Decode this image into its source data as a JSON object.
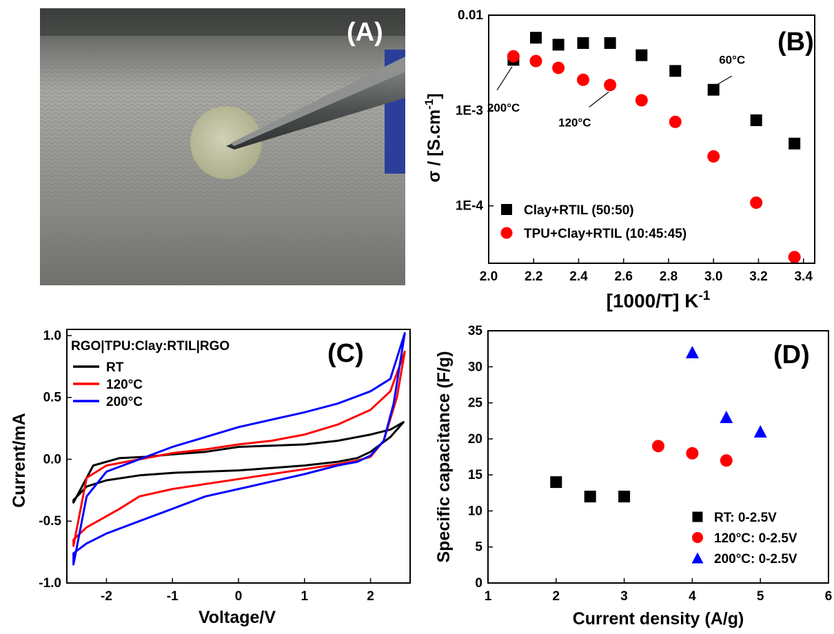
{
  "photo": {
    "label": "(A)",
    "colors": {
      "background": "#8e8e8c",
      "sample": "#c3c4a5",
      "tweezers": "#5a5c5c"
    }
  },
  "chart_data": [
    {
      "panel": "(B)",
      "type": "scatter",
      "xlabel": "[1000/T] K",
      "xlabel_sup": "-1",
      "ylabel": "σ / [S.cm",
      "ylabel_sup": "-1",
      "ylabel_end": "]",
      "xlim": [
        2.0,
        3.45
      ],
      "ylim": [
        2.5e-05,
        0.01
      ],
      "yscale": "log",
      "xticks": [
        2.0,
        2.2,
        2.4,
        2.6,
        2.8,
        3.0,
        3.2,
        3.4
      ],
      "xtick_labels": [
        "2.0",
        "2.2",
        "2.4",
        "2.6",
        "2.8",
        "3.0",
        "3.2",
        "3.4"
      ],
      "yticks": [
        0.0001,
        0.001,
        0.01
      ],
      "ytick_labels": [
        "1E-4",
        "1E-3",
        "0.01"
      ],
      "legend_position": "bottom-left",
      "series": [
        {
          "name": "Clay+RTIL (50:50)",
          "marker": "square",
          "color": "#000000",
          "x": [
            2.11,
            2.21,
            2.31,
            2.42,
            2.54,
            2.68,
            2.83,
            3.0,
            3.19,
            3.36
          ],
          "y": [
            0.0034,
            0.0058,
            0.0049,
            0.0051,
            0.0051,
            0.0038,
            0.0026,
            0.00165,
            0.00079,
            0.00045
          ]
        },
        {
          "name": "TPU+Clay+RTIL (10:45:45)",
          "marker": "circle",
          "color": "#ff0000",
          "x": [
            2.11,
            2.21,
            2.31,
            2.42,
            2.54,
            2.68,
            2.83,
            3.0,
            3.19,
            3.36
          ],
          "y": [
            0.0037,
            0.0033,
            0.0028,
            0.0021,
            0.00185,
            0.00128,
            0.00076,
            0.00033,
            0.000108,
            2.9e-05
          ]
        }
      ],
      "annotations": [
        {
          "text": "200°C",
          "x": 2.11,
          "y": 0.0034
        },
        {
          "text": "120°C",
          "x": 2.54,
          "y": 0.00185
        },
        {
          "text": "60°C",
          "x": 3.0,
          "y": 0.00165
        }
      ]
    },
    {
      "panel": "(C)",
      "type": "line",
      "title": "RGO|TPU:Clay:RTIL|RGO",
      "xlabel": "Voltage/V",
      "ylabel": "Current/mA",
      "xlim": [
        -2.6,
        2.6
      ],
      "ylim": [
        -1.0,
        1.05
      ],
      "xticks": [
        -2,
        -1,
        0,
        1,
        2
      ],
      "xtick_labels": [
        "-2",
        "-1",
        "0",
        "1",
        "2"
      ],
      "yticks": [
        -1.0,
        -0.5,
        0.0,
        0.5,
        1.0
      ],
      "ytick_labels": [
        "-1.0",
        "-0.5",
        "0.0",
        "0.5",
        "1.0"
      ],
      "legend_position": "top-left",
      "series": [
        {
          "name": "RT",
          "color": "#000000",
          "x": [
            -2.5,
            -2.2,
            -1.8,
            -1.4,
            -1.0,
            -0.5,
            0.0,
            0.5,
            1.0,
            1.5,
            2.0,
            2.3,
            2.5,
            2.3,
            2.0,
            1.8,
            1.5,
            1.0,
            0.5,
            0.0,
            -0.5,
            -1.0,
            -1.5,
            -2.0,
            -2.3,
            -2.5
          ],
          "y": [
            -0.35,
            -0.05,
            0.01,
            0.02,
            0.04,
            0.06,
            0.1,
            0.11,
            0.12,
            0.15,
            0.2,
            0.24,
            0.3,
            0.18,
            0.06,
            0.01,
            -0.02,
            -0.05,
            -0.07,
            -0.09,
            -0.1,
            -0.11,
            -0.13,
            -0.17,
            -0.22,
            -0.33
          ]
        },
        {
          "name": "120°C",
          "color": "#ff0000",
          "x": [
            -2.5,
            -2.3,
            -2.0,
            -1.5,
            -1.0,
            -0.5,
            0.0,
            0.5,
            1.0,
            1.5,
            2.0,
            2.3,
            2.52,
            2.4,
            2.2,
            2.0,
            1.8,
            1.5,
            1.0,
            0.5,
            0.0,
            -0.5,
            -1.0,
            -1.5,
            -1.8,
            -2.0,
            -2.3,
            -2.5
          ],
          "y": [
            -0.7,
            -0.15,
            -0.05,
            0.0,
            0.05,
            0.08,
            0.12,
            0.15,
            0.2,
            0.28,
            0.4,
            0.55,
            0.87,
            0.5,
            0.15,
            0.02,
            -0.01,
            -0.04,
            -0.08,
            -0.12,
            -0.16,
            -0.2,
            -0.24,
            -0.3,
            -0.4,
            -0.46,
            -0.55,
            -0.65
          ]
        },
        {
          "name": "200°C",
          "color": "#0000ff",
          "x": [
            -2.5,
            -2.3,
            -2.0,
            -1.5,
            -1.0,
            -0.5,
            0.0,
            0.5,
            1.0,
            1.5,
            2.0,
            2.3,
            2.52,
            2.35,
            2.2,
            2.0,
            1.8,
            1.5,
            1.0,
            0.5,
            0.0,
            -0.5,
            -1.0,
            -1.5,
            -2.0,
            -2.3,
            -2.5
          ],
          "y": [
            -0.85,
            -0.3,
            -0.1,
            0.0,
            0.1,
            0.18,
            0.26,
            0.32,
            0.38,
            0.45,
            0.55,
            0.65,
            1.02,
            0.45,
            0.15,
            0.03,
            -0.02,
            -0.05,
            -0.12,
            -0.18,
            -0.24,
            -0.3,
            -0.4,
            -0.5,
            -0.6,
            -0.68,
            -0.76
          ]
        }
      ]
    },
    {
      "panel": "(D)",
      "type": "scatter",
      "xlabel": "Current density (A/g)",
      "ylabel": "Specific capacitance (F/g)",
      "xlim": [
        1,
        6
      ],
      "ylim": [
        0,
        35
      ],
      "xticks": [
        1,
        2,
        3,
        4,
        5,
        6
      ],
      "xtick_labels": [
        "1",
        "2",
        "3",
        "4",
        "5",
        "6"
      ],
      "yticks": [
        0,
        5,
        10,
        15,
        20,
        25,
        30,
        35
      ],
      "ytick_labels": [
        "0",
        "5",
        "10",
        "15",
        "20",
        "25",
        "30",
        "35"
      ],
      "legend_position": "bottom-right",
      "series": [
        {
          "name": "RT: 0-2.5V",
          "marker": "square",
          "color": "#000000",
          "x": [
            2,
            2.5,
            3
          ],
          "y": [
            14,
            12,
            12
          ]
        },
        {
          "name": "120°C: 0-2.5V",
          "marker": "circle",
          "color": "#ff0000",
          "x": [
            3.5,
            4,
            4.5
          ],
          "y": [
            19,
            18,
            17
          ]
        },
        {
          "name": "200°C: 0-2.5V",
          "marker": "triangle",
          "color": "#0000ff",
          "x": [
            4,
            4.5,
            5
          ],
          "y": [
            32,
            23,
            21
          ]
        }
      ]
    }
  ]
}
